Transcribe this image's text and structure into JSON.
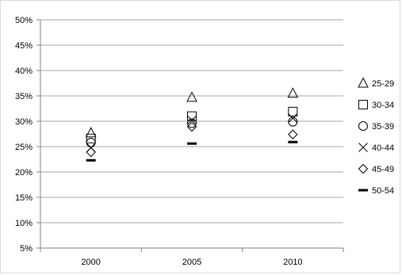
{
  "chart_data": {
    "type": "scatter",
    "title": "",
    "xlabel": "",
    "ylabel": "",
    "categories": [
      "2000",
      "2005",
      "2010"
    ],
    "ylim": [
      5,
      50
    ],
    "yticks": [
      "5%",
      "10%",
      "15%",
      "20%",
      "25%",
      "30%",
      "35%",
      "40%",
      "45%",
      "50%"
    ],
    "grid": "horizontal",
    "legend_position": "right",
    "series": [
      {
        "name": "25-29",
        "marker": "triangle",
        "values": [
          27.7,
          34.7,
          35.5
        ]
      },
      {
        "name": "30-34",
        "marker": "square",
        "values": [
          26.6,
          31.0,
          31.9
        ]
      },
      {
        "name": "35-39",
        "marker": "circle",
        "values": [
          25.8,
          29.6,
          29.9
        ]
      },
      {
        "name": "40-44",
        "marker": "x",
        "values": [
          24.8,
          30.2,
          30.6
        ]
      },
      {
        "name": "45-49",
        "marker": "diamond",
        "values": [
          23.9,
          28.9,
          27.4
        ]
      },
      {
        "name": "50-54",
        "marker": "dash",
        "values": [
          22.3,
          25.6,
          25.9
        ]
      }
    ],
    "colors": {
      "marker": "#000000",
      "grid": "#a6a6a6",
      "axis": "#7f7f7f"
    }
  }
}
